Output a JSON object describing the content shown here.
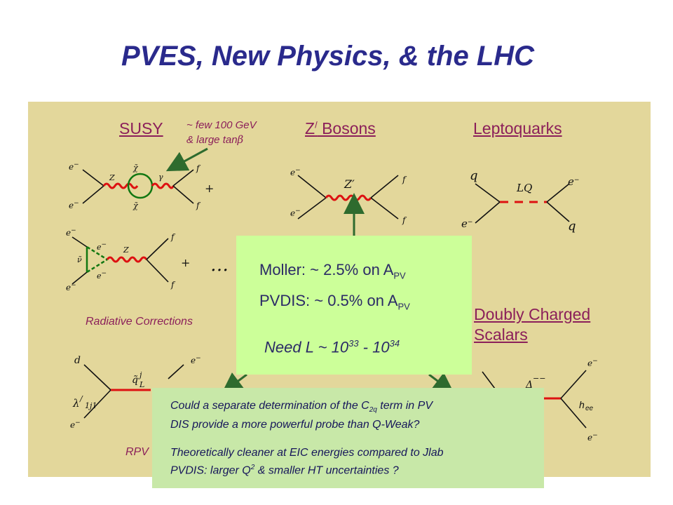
{
  "title": "PVES, New Physics, & the LHC",
  "categories": {
    "susy": "SUSY",
    "zprime": "Z",
    "zprime_prime": "/",
    "zprime_rest": " Bosons",
    "leptoquarks": "Leptoquarks",
    "doubly_line1": "Doubly Charged",
    "doubly_line2": "Scalars"
  },
  "susy_note": {
    "line1": "~ few 100 GeV",
    "line2": "& large tan",
    "beta": "β"
  },
  "radiative_corrections": "Radiative Corrections",
  "rpv_label": "RPV",
  "diagram_labels": {
    "e_minus": "e",
    "minus": "−",
    "f": "f",
    "q": "q",
    "Z": "Z",
    "Zprime": "Z′",
    "LQ": "LQ",
    "plus": "+",
    "ellipsis": "…",
    "d": "d",
    "lambda": "λ",
    "lambda_prime": "/",
    "lambda_sub": "1j1",
    "qtilde": "q̃",
    "qtilde_sup": "j",
    "qtilde_sub": "L",
    "chi": "χ̃",
    "nu": "ν̃",
    "gamma": "γ",
    "Delta": "Δ",
    "Delta_sup": "−−",
    "h": "h",
    "h_sub": "ee"
  },
  "green_box": {
    "moller": "Moller: ~ 2.5% on A",
    "moller_sub": "PV",
    "pvdis": "PVDIS: ~ 0.5% on A",
    "pvdis_sub": "PV",
    "need_prefix": "Need L ~ 10",
    "need_exp1": "33",
    "need_mid": " - 10",
    "need_exp2": "34"
  },
  "bottom_box": {
    "q1_a": "Could a separate determination of the C",
    "q1_sub": "2q",
    "q1_b": " term in PV",
    "q1_line2": "DIS provide a more powerful probe than Q-Weak?",
    "q2_line1": "Theoretically cleaner at EIC energies compared to Jlab",
    "q2_a": "PVDIS: larger Q",
    "q2_sup": "2",
    "q2_b": " & smaller HT uncertainties ?"
  },
  "colors": {
    "title": "#2a2a8c",
    "panel": "#e3d79b",
    "category": "#8b1f5a",
    "green_box": "#ccff99",
    "bottom_box": "#c8e8a8",
    "arrow": "#2e6b2e",
    "propagator_red": "#dd1111"
  }
}
